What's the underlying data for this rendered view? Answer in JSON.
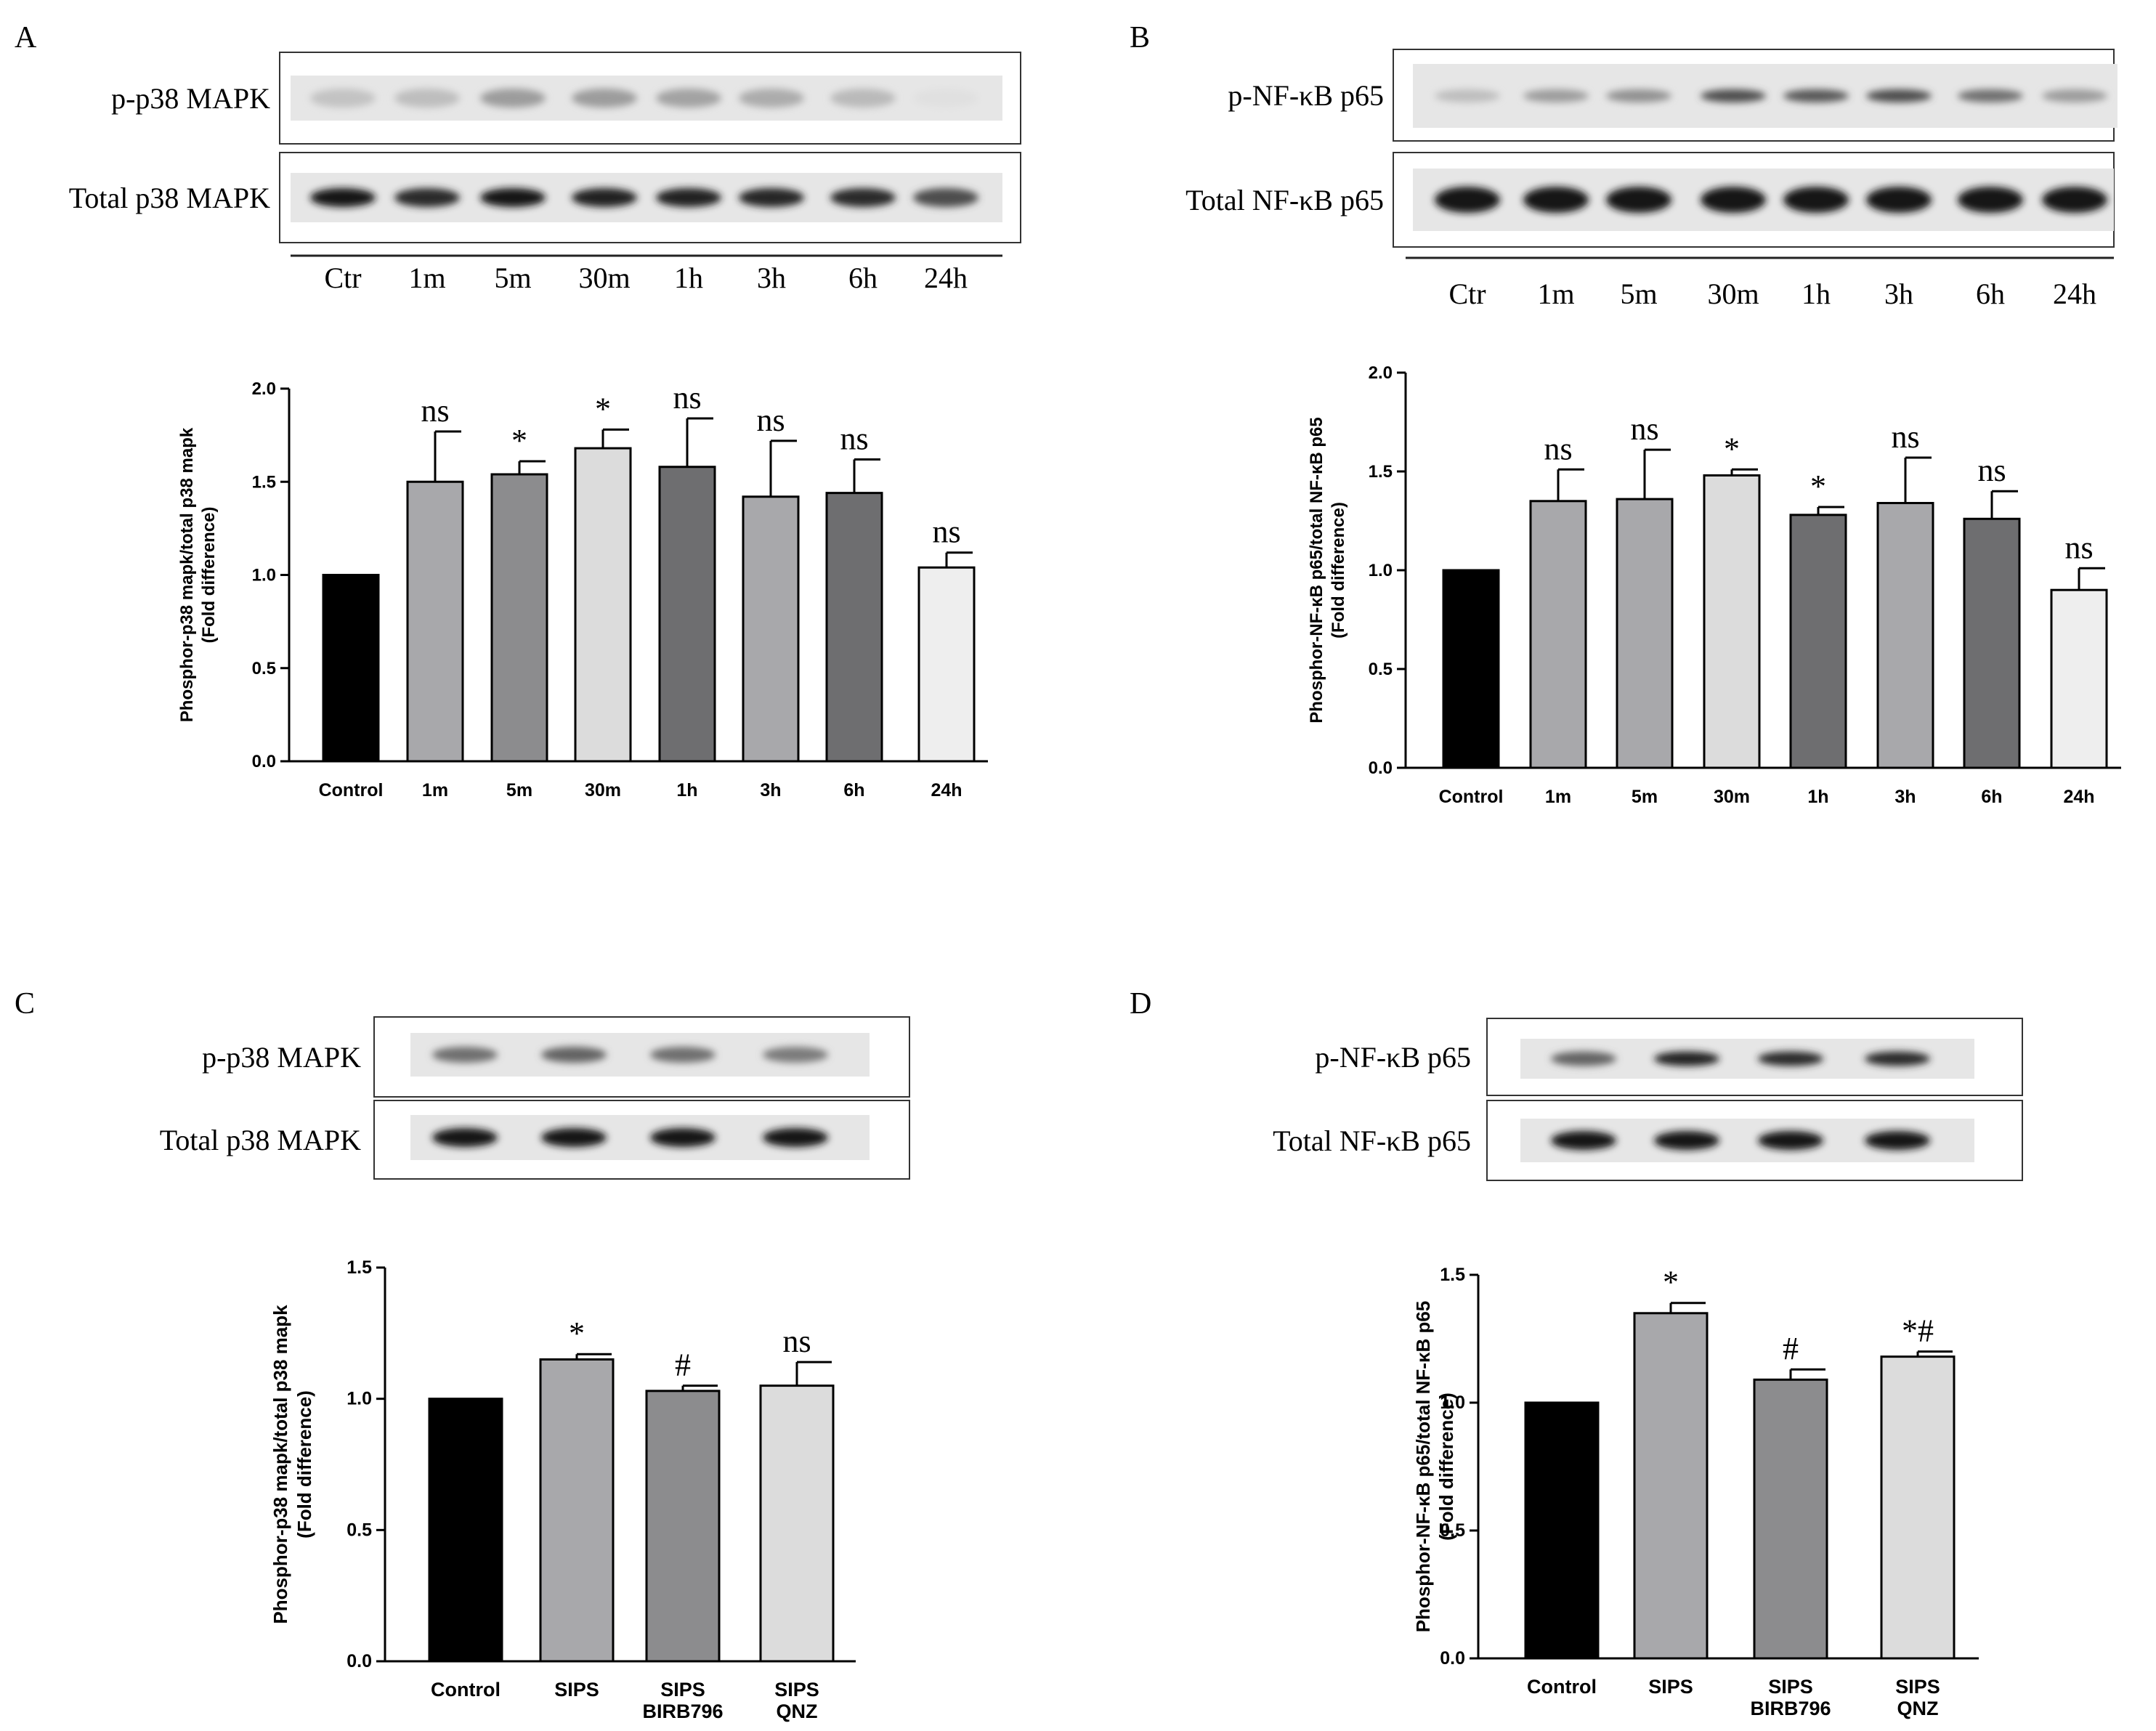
{
  "panel_letters": [
    "A",
    "B",
    "C",
    "D"
  ],
  "blots": [
    {
      "panel": "A",
      "rows": [
        {
          "label": "p-p38 MAPK",
          "intensity": [
            0.18,
            0.2,
            0.35,
            0.35,
            0.32,
            0.28,
            0.22,
            0.05
          ]
        },
        {
          "label": "Total p38 MAPK",
          "intensity": [
            0.95,
            0.85,
            0.95,
            0.9,
            0.9,
            0.88,
            0.85,
            0.7
          ]
        }
      ],
      "lanes": [
        "Ctr",
        "1m",
        "5m",
        "30m",
        "1h",
        "3h",
        "6h",
        "24h"
      ]
    },
    {
      "panel": "B",
      "rows": [
        {
          "label": "p-NF-κB p65",
          "intensity": [
            0.2,
            0.35,
            0.4,
            0.7,
            0.65,
            0.7,
            0.55,
            0.35
          ]
        },
        {
          "label": "Total NF-κB p65",
          "intensity": [
            0.95,
            0.95,
            0.95,
            0.95,
            0.95,
            0.95,
            0.95,
            0.95
          ]
        }
      ],
      "lanes": [
        "Ctr",
        "1m",
        "5m",
        "30m",
        "1h",
        "3h",
        "6h",
        "24h"
      ]
    },
    {
      "panel": "C",
      "rows": [
        {
          "label": "p-p38 MAPK",
          "intensity": [
            0.55,
            0.6,
            0.55,
            0.5
          ]
        },
        {
          "label": "Total p38 MAPK",
          "intensity": [
            0.95,
            0.95,
            0.95,
            0.95
          ]
        }
      ],
      "lanes": []
    },
    {
      "panel": "D",
      "rows": [
        {
          "label": "p-NF-κB p65",
          "intensity": [
            0.6,
            0.9,
            0.85,
            0.85
          ]
        },
        {
          "label": "Total NF-κB p65",
          "intensity": [
            0.95,
            0.95,
            0.95,
            0.95
          ]
        }
      ],
      "lanes": []
    }
  ],
  "chart_data": [
    {
      "panel": "A",
      "type": "bar",
      "categories": [
        "Control",
        "1m",
        "5m",
        "30m",
        "1h",
        "3h",
        "6h",
        "24h"
      ],
      "values": [
        1.0,
        1.5,
        1.54,
        1.68,
        1.58,
        1.42,
        1.44,
        1.04
      ],
      "errors": [
        0,
        0.27,
        0.07,
        0.1,
        0.26,
        0.3,
        0.18,
        0.08
      ],
      "annotations": [
        "",
        "ns",
        "*",
        "*",
        "ns",
        "ns",
        "ns",
        "ns"
      ],
      "colors": [
        "#000000",
        "#a8a8ab",
        "#8c8c8e",
        "#dcdcdc",
        "#6e6e70",
        "#a8a8ab",
        "#6e6e70",
        "#eeeeee"
      ],
      "ylabel": [
        "Phosphor-p38 mapk/total p38 mapk",
        "(Fold difference)"
      ],
      "ylim": [
        0,
        2.0
      ],
      "yticks": [
        "0.0",
        "0.5",
        "1.0",
        "1.5",
        "2.0"
      ]
    },
    {
      "panel": "B",
      "type": "bar",
      "categories": [
        "Control",
        "1m",
        "5m",
        "30m",
        "1h",
        "3h",
        "6h",
        "24h"
      ],
      "values": [
        1.0,
        1.35,
        1.36,
        1.48,
        1.28,
        1.34,
        1.26,
        0.9
      ],
      "errors": [
        0,
        0.16,
        0.25,
        0.03,
        0.04,
        0.23,
        0.14,
        0.11
      ],
      "annotations": [
        "",
        "ns",
        "ns",
        "*",
        "*",
        "ns",
        "ns",
        "ns"
      ],
      "colors": [
        "#000000",
        "#a8a8ab",
        "#a8a8ab",
        "#dcdcdc",
        "#6e6e70",
        "#a8a8ab",
        "#6e6e70",
        "#eeeeee"
      ],
      "ylabel": [
        "Phosphor-NF-κB p65/total NF-κB p65",
        "(Fold difference)"
      ],
      "ylim": [
        0,
        2.0
      ],
      "yticks": [
        "0.0",
        "0.5",
        "1.0",
        "1.5",
        "2.0"
      ]
    },
    {
      "panel": "C",
      "type": "bar",
      "categories": [
        [
          "Control"
        ],
        [
          "SIPS"
        ],
        [
          "SIPS",
          "BIRB796"
        ],
        [
          "SIPS",
          "QNZ"
        ]
      ],
      "values": [
        1.0,
        1.15,
        1.03,
        1.05
      ],
      "errors": [
        0,
        0.02,
        0.02,
        0.09
      ],
      "annotations": [
        "",
        "*",
        "#",
        "ns"
      ],
      "colors": [
        "#000000",
        "#a8a8ab",
        "#8c8c8e",
        "#dcdcdc"
      ],
      "ylabel": [
        "Phosphor-p38 mapk/total p38 mapk",
        "(Fold difference)"
      ],
      "ylim": [
        0,
        1.5
      ],
      "yticks": [
        "0.0",
        "0.5",
        "1.0",
        "1.5"
      ]
    },
    {
      "panel": "D",
      "type": "bar",
      "categories": [
        [
          "Control"
        ],
        [
          "SIPS"
        ],
        [
          "SIPS",
          "BIRB796"
        ],
        [
          "SIPS",
          "QNZ"
        ]
      ],
      "values": [
        1.0,
        1.35,
        1.09,
        1.18
      ],
      "errors": [
        0,
        0.04,
        0.04,
        0.02
      ],
      "annotations": [
        "",
        "*",
        "#",
        "*#"
      ],
      "colors": [
        "#000000",
        "#a8a8ab",
        "#8c8c8e",
        "#dcdcdc"
      ],
      "ylabel": [
        "Phosphor-NF-κB p65/total NF-κB p65",
        "(Fold difference)"
      ],
      "ylim": [
        0,
        1.5
      ],
      "yticks": [
        "0.0",
        "0.5",
        "1.0",
        "1.5"
      ]
    }
  ]
}
